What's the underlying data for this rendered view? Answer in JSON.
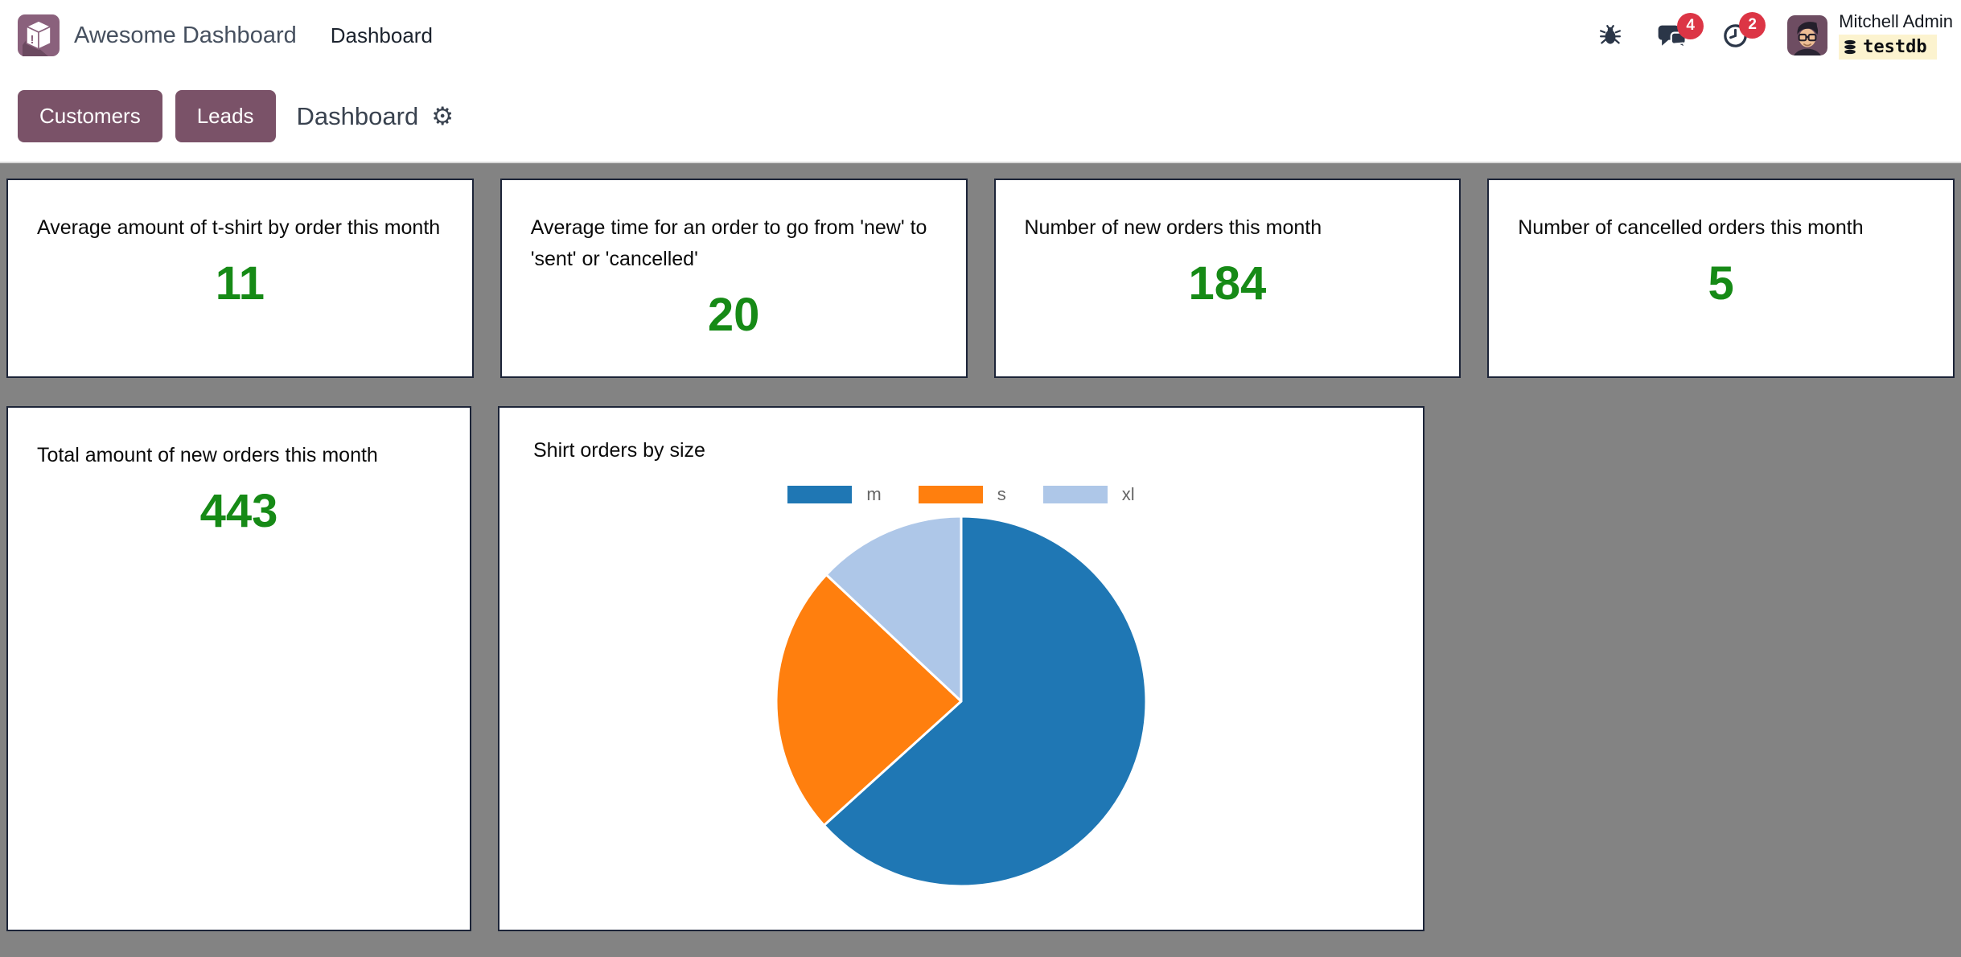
{
  "app": {
    "name": "Awesome Dashboard",
    "menu": "Dashboard"
  },
  "navbar": {
    "messages_badge": "4",
    "activities_badge": "2",
    "user": {
      "name": "Mitchell Admin",
      "database": "testdb"
    }
  },
  "control_panel": {
    "buttons": [
      {
        "label": "Customers"
      },
      {
        "label": "Leads"
      }
    ],
    "title": "Dashboard"
  },
  "icons": {
    "gear_glyph": "⚙"
  },
  "cards": [
    {
      "title": "Average amount of t-shirt by order this month",
      "value": "11"
    },
    {
      "title": "Average time for an order to go from 'new' to 'sent' or 'cancelled'",
      "value": "20"
    },
    {
      "title": "Number of new orders this month",
      "value": "184"
    },
    {
      "title": "Number of cancelled orders this month",
      "value": "5"
    },
    {
      "title": "Total amount of new orders this month",
      "value": "443"
    }
  ],
  "chart_card": {
    "title": "Shirt orders by size"
  },
  "chart_data": {
    "type": "pie",
    "title": "Shirt orders by size",
    "labels": [
      "m",
      "s",
      "xl"
    ],
    "values": [
      63.3,
      23.7,
      13.0
    ],
    "unit": "percent",
    "colors": [
      "#1f77b4",
      "#ff7f0e",
      "#aec7e8"
    ],
    "legend_position": "top",
    "start_angle": "top",
    "direction": "clockwise"
  },
  "colors": {
    "accent_plum": "#7a5268",
    "logo_plum": "#8a617c",
    "value_green": "#168a16",
    "badge_red": "#dc3545",
    "canvas_gray": "#838383",
    "card_border": "#1c2438",
    "db_chip_bg": "#fcf3cf"
  }
}
